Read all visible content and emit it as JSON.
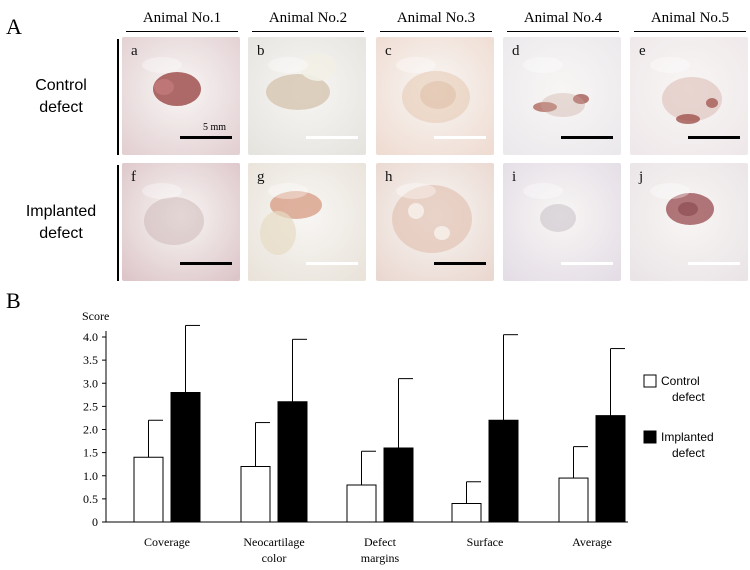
{
  "panel_a_letter": "A",
  "panel_b_letter": "B",
  "animals": [
    "Animal No.1",
    "Animal No.2",
    "Animal No.3",
    "Animal No.4",
    "Animal No.5"
  ],
  "rows": [
    {
      "label_line1": "Control",
      "label_line2": "defect",
      "letters": [
        "a",
        "b",
        "c",
        "d",
        "e"
      ]
    },
    {
      "label_line1": "Implanted",
      "label_line2": "defect",
      "letters": [
        "f",
        "g",
        "h",
        "i",
        "j"
      ]
    }
  ],
  "scale_label": "5 mm",
  "scalebar_colors": [
    [
      "#000000",
      "#ffffff",
      "#ffffff",
      "#000000",
      "#000000"
    ],
    [
      "#000000",
      "#ffffff",
      "#000000",
      "#ffffff",
      "#ffffff"
    ]
  ],
  "colors": {
    "control_fill": "#ffffff",
    "implanted_fill": "#000000",
    "axis": "#000000"
  },
  "chart_data": {
    "type": "bar",
    "title": "",
    "ylabel": "Score",
    "xlabel": "",
    "ylim": [
      0,
      4.0
    ],
    "yticks": [
      "0",
      "0.5",
      "1.0",
      "1.5",
      "2.0",
      "2.5",
      "3.0",
      "3.5",
      "4.0"
    ],
    "categories": [
      {
        "line1": "Coverage",
        "line2": ""
      },
      {
        "line1": "Neocartilage",
        "line2": "color"
      },
      {
        "line1": "Defect",
        "line2": "margins"
      },
      {
        "line1": "Surface",
        "line2": ""
      },
      {
        "line1": "Average",
        "line2": ""
      }
    ],
    "series": [
      {
        "name": "Control defect",
        "name_line1": "Control",
        "name_line2": "defect",
        "values": [
          1.4,
          1.2,
          0.8,
          0.4,
          0.95
        ],
        "errors": [
          0.8,
          0.95,
          0.73,
          0.47,
          0.68
        ]
      },
      {
        "name": "Implanted defect",
        "name_line1": "Implanted",
        "name_line2": "defect",
        "values": [
          2.8,
          2.6,
          1.6,
          2.2,
          2.3
        ],
        "errors": [
          1.45,
          1.35,
          1.5,
          1.85,
          1.45
        ]
      }
    ],
    "legend_position": "right"
  }
}
